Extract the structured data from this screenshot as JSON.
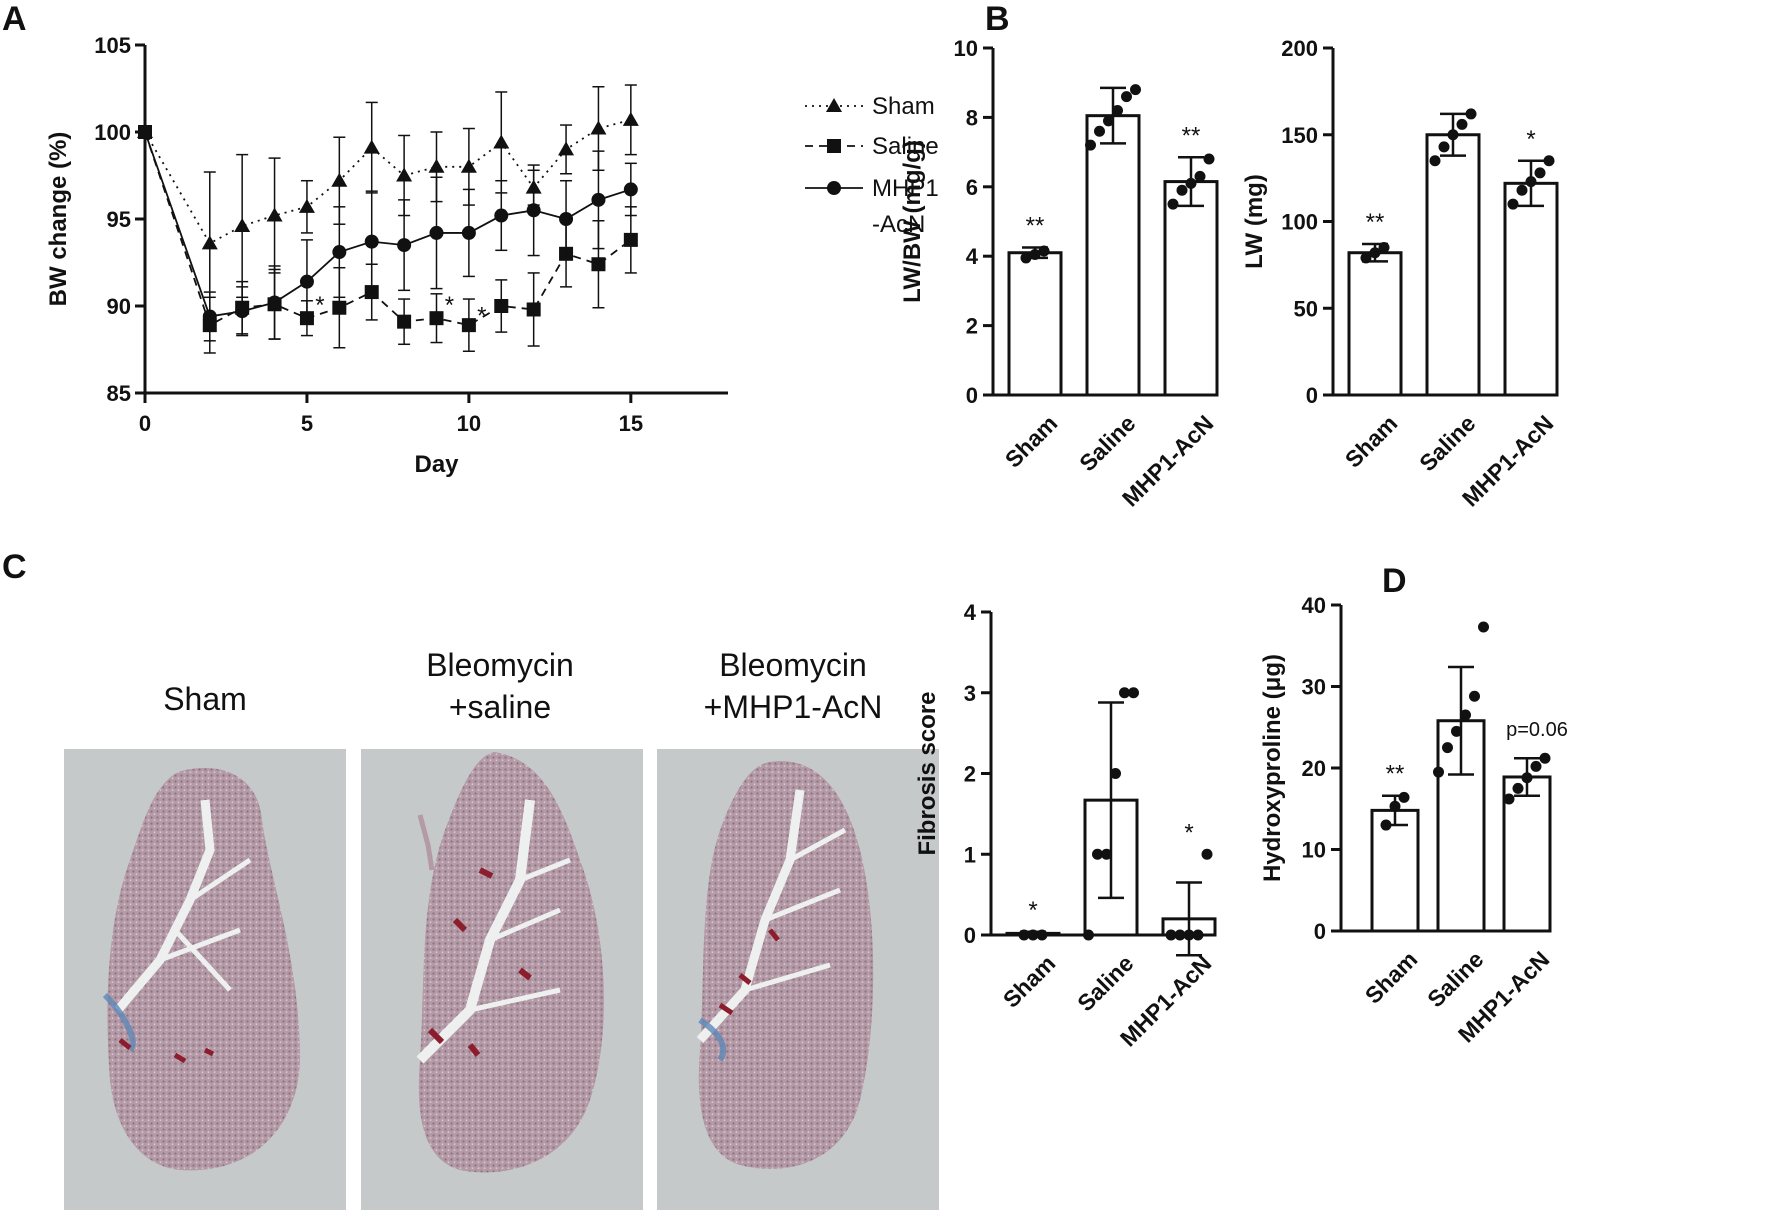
{
  "panels": {
    "a": "A",
    "b": "B",
    "c": "C",
    "d": "D"
  },
  "colors": {
    "ink": "#111111",
    "slide": "#c5c9c9",
    "tissue": "#9c7e8c",
    "stain_red": "#8b1d2c",
    "stain_blue": "#5f88b8"
  },
  "chart_data": [
    {
      "id": "A",
      "type": "line",
      "xlabel": "Day",
      "ylabel": "BW change (%)",
      "xlim": [
        0,
        18
      ],
      "ylim": [
        85,
        105
      ],
      "xticks": [
        0,
        5,
        10,
        15
      ],
      "yticks": [
        85,
        90,
        95,
        100,
        105
      ],
      "legend_position": "right",
      "series": [
        {
          "name": "Sham",
          "marker": "triangle",
          "line": "dotted",
          "x": [
            0,
            2,
            3,
            4,
            5,
            6,
            7,
            8,
            9,
            10,
            11,
            12,
            13,
            14,
            15
          ],
          "y": [
            100,
            93.6,
            94.6,
            95.2,
            95.7,
            97.2,
            99.1,
            97.5,
            98.0,
            98.0,
            99.4,
            96.8,
            99.0,
            100.2,
            100.7
          ],
          "err": [
            0,
            4.1,
            4.1,
            3.3,
            1.5,
            2.5,
            2.6,
            2.3,
            2.0,
            2.2,
            2.9,
            1.0,
            1.4,
            2.4,
            2.0
          ]
        },
        {
          "name": "Saline",
          "marker": "square",
          "line": "dashed",
          "x": [
            0,
            2,
            3,
            4,
            5,
            6,
            7,
            8,
            9,
            10,
            11,
            12,
            13,
            14,
            15
          ],
          "y": [
            100,
            88.9,
            89.9,
            90.1,
            89.3,
            89.9,
            90.8,
            89.1,
            89.3,
            88.9,
            90.0,
            89.8,
            93.0,
            92.4,
            93.8
          ],
          "err": [
            0,
            1.6,
            1.5,
            2.0,
            1.0,
            2.3,
            1.6,
            1.3,
            1.4,
            1.5,
            1.5,
            2.1,
            1.9,
            2.5,
            1.9
          ]
        },
        {
          "name": "MHP1\n-AcN",
          "marker": "circle",
          "line": "solid",
          "x": [
            0,
            2,
            3,
            4,
            5,
            6,
            7,
            8,
            9,
            10,
            11,
            12,
            13,
            14,
            15
          ],
          "y": [
            100,
            89.4,
            89.7,
            90.2,
            91.4,
            93.1,
            93.7,
            93.5,
            94.2,
            94.2,
            95.2,
            95.5,
            95.0,
            96.1,
            96.7
          ],
          "err": [
            0,
            1.4,
            1.4,
            2.1,
            2.4,
            2.6,
            2.9,
            2.6,
            3.2,
            2.5,
            2.0,
            2.6,
            2.2,
            2.8,
            1.5
          ]
        }
      ],
      "annotations": [
        {
          "text": "*",
          "x": 5.4,
          "y": 89.6
        },
        {
          "text": "*",
          "x": 9.4,
          "y": 89.6
        },
        {
          "text": "*",
          "x": 10.4,
          "y": 89.0
        }
      ]
    },
    {
      "id": "B1",
      "type": "bar",
      "categories": [
        "Sham",
        "Saline",
        "MHP1-AcN"
      ],
      "values": [
        4.1,
        8.05,
        6.15
      ],
      "err": [
        0.15,
        0.8,
        0.7
      ],
      "points": [
        [
          3.95,
          4.05,
          4.15
        ],
        [
          7.2,
          7.6,
          7.9,
          8.2,
          8.6,
          8.8
        ],
        [
          5.5,
          5.9,
          6.1,
          6.3,
          6.8
        ]
      ],
      "ylabel": "LW/BW (mg/g)",
      "ylim": [
        0,
        10
      ],
      "yticks": [
        0,
        2,
        4,
        6,
        8,
        10
      ],
      "stars": [
        "**",
        "",
        "**"
      ]
    },
    {
      "id": "B2",
      "type": "bar",
      "categories": [
        "Sham",
        "Saline",
        "MHP1-AcN"
      ],
      "values": [
        82,
        150,
        122
      ],
      "err": [
        5,
        12,
        13
      ],
      "points": [
        [
          79,
          82,
          85
        ],
        [
          135,
          143,
          150,
          156,
          162
        ],
        [
          110,
          118,
          123,
          128,
          135
        ]
      ],
      "ylabel": "LW (mg)",
      "ylim": [
        0,
        200
      ],
      "yticks": [
        0,
        50,
        100,
        150,
        200
      ],
      "stars": [
        "**",
        "",
        "*"
      ]
    },
    {
      "id": "C",
      "type": "bar",
      "categories": [
        "Sham",
        "Saline",
        "MHP1-AcN"
      ],
      "values": [
        0.02,
        1.67,
        0.2
      ],
      "err": [
        0.02,
        1.21,
        0.45
      ],
      "points": [
        [
          0,
          0,
          0
        ],
        [
          0,
          1,
          1,
          2,
          3,
          3
        ],
        [
          0,
          0,
          0,
          0,
          1
        ]
      ],
      "ylabel": "Fibrosis score",
      "ylim": [
        0,
        4
      ],
      "yticks": [
        0,
        1,
        2,
        3,
        4
      ],
      "stars": [
        "*",
        "",
        "*"
      ]
    },
    {
      "id": "D",
      "type": "bar",
      "categories": [
        "Sham",
        "Saline",
        "MHP1-AcN"
      ],
      "values": [
        14.8,
        25.8,
        18.9
      ],
      "err": [
        1.8,
        6.6,
        2.3
      ],
      "points": [
        [
          13.0,
          15.3,
          16.4
        ],
        [
          19.5,
          22.5,
          24.5,
          26.5,
          28.8,
          37.3
        ],
        [
          16.2,
          17.5,
          18.8,
          20.2,
          21.2
        ]
      ],
      "ylabel": "Hydroxyproline (μg)",
      "ylim": [
        0,
        40
      ],
      "yticks": [
        0,
        10,
        20,
        30,
        40
      ],
      "stars": [
        "**",
        "",
        ""
      ],
      "note": "p=0.06"
    }
  ],
  "micrographs": [
    {
      "title_line1": "Sham",
      "title_line2": ""
    },
    {
      "title_line1": "Bleomycin",
      "title_line2": "+saline"
    },
    {
      "title_line1": "Bleomycin",
      "title_line2": "+MHP1-AcN"
    }
  ]
}
